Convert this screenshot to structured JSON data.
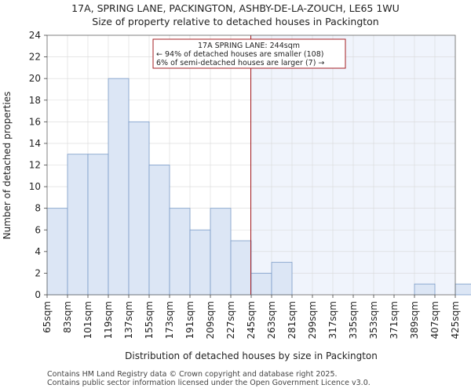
{
  "chart_data": {
    "type": "bar",
    "title": "17A, SPRING LANE, PACKINGTON, ASHBY-DE-LA-ZOUCH, LE65 1WU",
    "subtitle": "Size of property relative to detached houses in Packington",
    "xlabel": "Distribution of detached houses by size in Packington",
    "ylabel": "Number of detached properties",
    "categories": [
      "65sqm",
      "83sqm",
      "101sqm",
      "119sqm",
      "137sqm",
      "155sqm",
      "173sqm",
      "191sqm",
      "209sqm",
      "227sqm",
      "245sqm",
      "263sqm",
      "281sqm",
      "299sqm",
      "317sqm",
      "335sqm",
      "353sqm",
      "371sqm",
      "389sqm",
      "407sqm",
      "425sqm"
    ],
    "values": [
      8,
      13,
      13,
      20,
      16,
      12,
      8,
      6,
      8,
      5,
      2,
      3,
      0,
      0,
      0,
      0,
      0,
      0,
      1,
      0,
      1
    ],
    "ylim": [
      0,
      24
    ],
    "yticks": [
      0,
      2,
      4,
      6,
      8,
      10,
      12,
      14,
      16,
      18,
      20,
      22,
      24
    ],
    "marker_value": 244,
    "marker_index": 10,
    "annotation": {
      "line1": "17A SPRING LANE: 244sqm",
      "line2": "← 94% of detached houses are smaller (108)",
      "line3": "6% of semi-detached houses are larger (7) →"
    },
    "colors": {
      "bar_fill": "#dce6f5",
      "bar_edge": "#7b9cc8",
      "highlight_bg": "#f0f4fc",
      "marker": "#a31d22"
    }
  },
  "footer": {
    "line1": "Contains HM Land Registry data © Crown copyright and database right 2025.",
    "line2": "Contains public sector information licensed under the Open Government Licence v3.0."
  }
}
